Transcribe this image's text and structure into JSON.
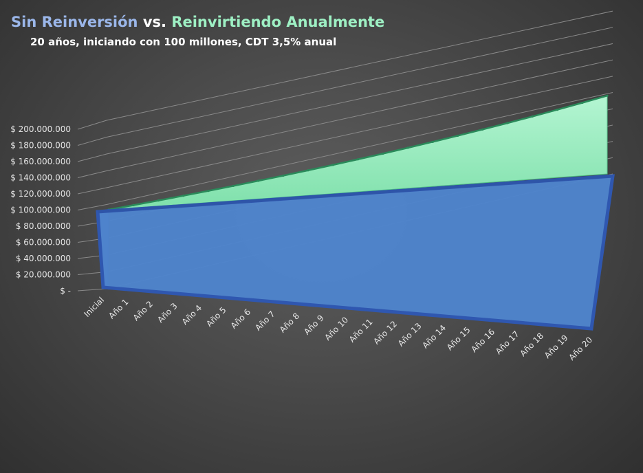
{
  "header": {
    "title_part1": "Sin Reinversión",
    "title_part2": " vs. ",
    "title_part3": "Reinvirtiendo Anualmente",
    "subtitle": "20 años, iniciando con 100 millones, CDT 3,5% anual"
  },
  "colors": {
    "sin_reinversion": "#4a7fd0",
    "reinvirtiendo": "#9ef0c4"
  },
  "chart_data": {
    "type": "area",
    "view": "3d",
    "title": "Sin Reinversión vs. Reinvirtiendo Anualmente",
    "subtitle": "20 años, iniciando con 100 millones, CDT 3,5% anual",
    "categories": [
      "Inicial",
      "Año 1",
      "Año 2",
      "Año 3",
      "Año 4",
      "Año 5",
      "Año 6",
      "Año 7",
      "Año 8",
      "Año 9",
      "Año 10",
      "Año 11",
      "Año 12",
      "Año 13",
      "Año 14",
      "Año 15",
      "Año 16",
      "Año 17",
      "Año 18",
      "Año 19",
      "Año 20"
    ],
    "yticks": [
      "$ -",
      "$ 20.000.000",
      "$ 40.000.000",
      "$ 60.000.000",
      "$ 80.000.000",
      "$ 100.000.000",
      "$ 120.000.000",
      "$ 140.000.000",
      "$ 160.000.000",
      "$ 180.000.000",
      "$ 200.000.000"
    ],
    "ylim": [
      0,
      200000000
    ],
    "grid": true,
    "series": [
      {
        "values": [
          100000000,
          103500000,
          107000000,
          110500000,
          114000000,
          117500000,
          121000000,
          124500000,
          128000000,
          131500000,
          135000000,
          138500000,
          142000000,
          145500000,
          149000000,
          152500000,
          156000000,
          159500000,
          163000000,
          166500000,
          170000000
        ]
      },
      {
        "values": [
          100000000,
          103500000,
          107122500,
          110871788,
          114752300,
          118768631,
          122925533,
          127227926,
          131680904,
          136289735,
          141059876,
          145996972,
          151106866,
          156395606,
          161869452,
          167534883,
          173398604,
          179467555,
          185748920,
          192250132,
          198978886
        ]
      }
    ]
  }
}
